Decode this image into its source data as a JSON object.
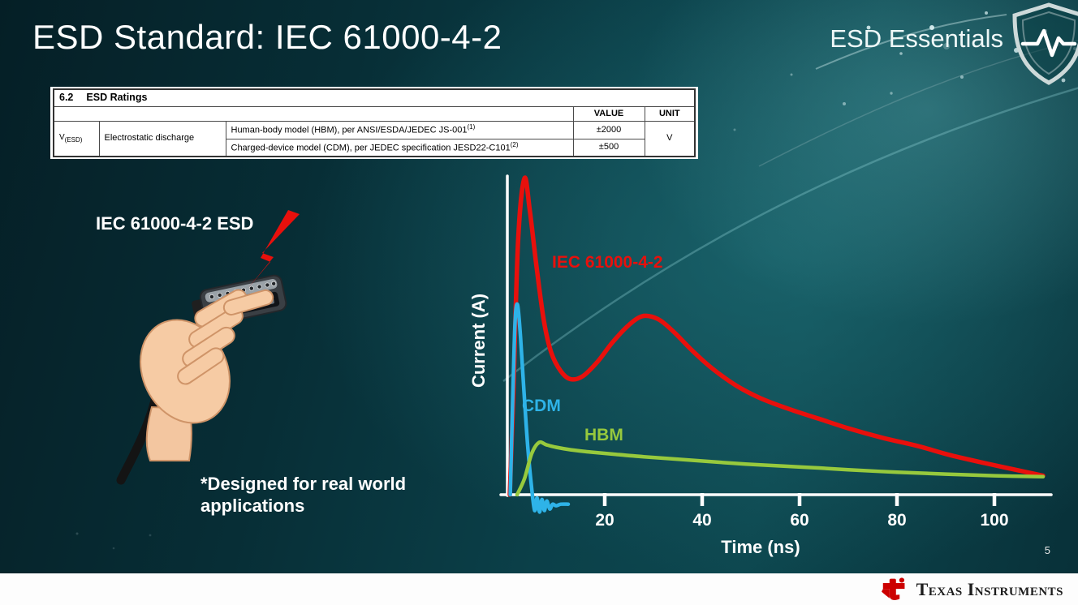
{
  "slide": {
    "title": "ESD Standard: IEC 61000-4-2",
    "series_brand": "ESD Essentials",
    "page_number": "5"
  },
  "colors": {
    "background_teal": "#0b4049",
    "iec_red": "#e8100c",
    "cdm_blue": "#2eb3e8",
    "hbm_green": "#97c93d",
    "footer_bg": "#ffffff",
    "ti_red": "#cc0000"
  },
  "icons": {
    "shield": "esd-essentials-shield",
    "bolt": "lightning-bolt",
    "ti_bug": "texas-instruments-logo"
  },
  "ratings_table": {
    "section_no": "6.2",
    "section_title": "ESD Ratings",
    "headers": {
      "value": "VALUE",
      "unit": "UNIT"
    },
    "param": {
      "symbol": "V",
      "symbol_sub": "(ESD)",
      "name": "Electrostatic discharge"
    },
    "rows": [
      {
        "model": "Human-body model (HBM), per ANSI/ESDA/JEDEC JS-001",
        "sup": "(1)",
        "value": "±2000"
      },
      {
        "model": "Charged-device model (CDM), per JEDEC specification JESD22-C101",
        "sup": "(2)",
        "value": "±500"
      }
    ],
    "unit": "V"
  },
  "illustration": {
    "caption": "IEC 61000-4-2 ESD",
    "note": "*Designed for real world applications"
  },
  "chart_data": {
    "type": "line",
    "title": "",
    "xlabel": "Time (ns)",
    "ylabel": "Current (A)",
    "xlim": [
      0,
      112
    ],
    "xticks": [
      20,
      40,
      60,
      80,
      100
    ],
    "ylim": [
      -0.1,
      1.08
    ],
    "grid": false,
    "legend_position": "inline-labels",
    "series": [
      {
        "name": "IEC 61000-4-2",
        "color": "#e8100c",
        "stroke_width": 5.5,
        "x": [
          0.5,
          1.2,
          2.2,
          3.5,
          4.6,
          6,
          7.5,
          9,
          11,
          13,
          15.5,
          18.5,
          21.5,
          24.5,
          27,
          29,
          31.5,
          34.5,
          38,
          42,
          47,
          52,
          58,
          64,
          70,
          77,
          84,
          91,
          98,
          104,
          110
        ],
        "y": [
          0,
          0.3,
          0.8,
          1.0,
          0.9,
          0.72,
          0.55,
          0.45,
          0.39,
          0.365,
          0.375,
          0.42,
          0.48,
          0.53,
          0.56,
          0.565,
          0.55,
          0.51,
          0.455,
          0.4,
          0.345,
          0.305,
          0.27,
          0.24,
          0.21,
          0.18,
          0.155,
          0.125,
          0.1,
          0.08,
          0.06
        ]
      },
      {
        "name": "CDM",
        "color": "#2eb3e8",
        "stroke_width": 4.5,
        "x": [
          0.6,
          1.1,
          1.6,
          2.1,
          2.7,
          3.4,
          4.2,
          5.0,
          5.6,
          6.1,
          6.6,
          7.1,
          7.6,
          8.1,
          8.7,
          9.3,
          10.0,
          11,
          12.5
        ],
        "y": [
          0,
          0.3,
          0.55,
          0.6,
          0.5,
          0.33,
          0.15,
          0.02,
          -0.05,
          -0.01,
          -0.055,
          -0.015,
          -0.05,
          -0.02,
          -0.045,
          -0.03,
          -0.035,
          -0.03,
          -0.03
        ]
      },
      {
        "name": "HBM",
        "color": "#97c93d",
        "stroke_width": 4.5,
        "x": [
          2,
          3.5,
          5,
          6.5,
          8,
          10,
          13,
          17,
          22,
          28,
          35,
          43,
          52,
          61,
          70,
          80,
          90,
          100,
          110
        ],
        "y": [
          0,
          0.05,
          0.13,
          0.165,
          0.158,
          0.15,
          0.142,
          0.135,
          0.128,
          0.12,
          0.112,
          0.103,
          0.094,
          0.087,
          0.079,
          0.071,
          0.065,
          0.06,
          0.057
        ]
      }
    ]
  },
  "footer": {
    "brand": "Texas Instruments"
  }
}
